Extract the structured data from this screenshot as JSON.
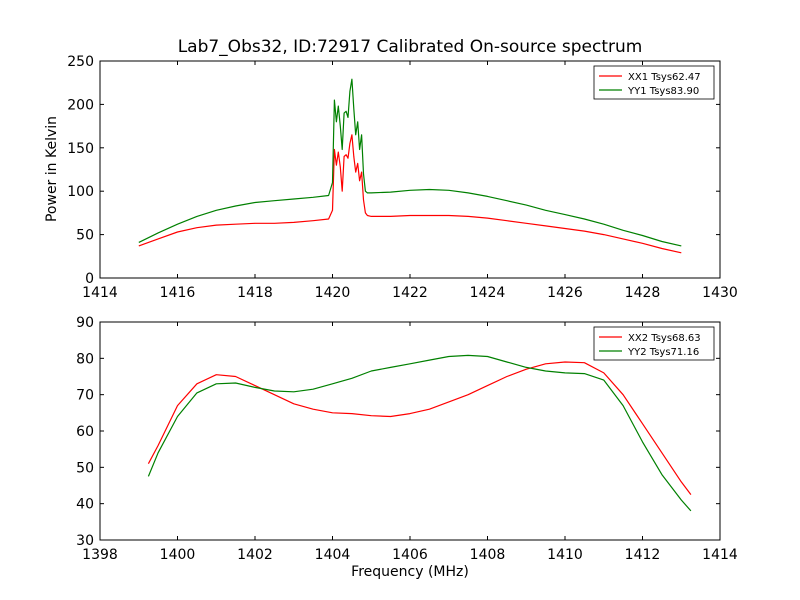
{
  "figure": {
    "title": "Lab7_Obs32, ID:72917 Calibrated On-source spectrum",
    "xlabel": "Frequency (MHz)",
    "ylabel": "Power in Kelvin"
  },
  "colors": {
    "red": "#ff0000",
    "green": "#008000"
  },
  "chart_data": [
    {
      "type": "line",
      "xlim": [
        1414,
        1430
      ],
      "ylim": [
        0,
        250
      ],
      "xticks": [
        1414,
        1416,
        1418,
        1420,
        1422,
        1424,
        1426,
        1428,
        1430
      ],
      "yticks": [
        0,
        50,
        100,
        150,
        200,
        250
      ],
      "legend_position": "top-right",
      "series": [
        {
          "name": "XX1 Tsys62.47",
          "color": "#ff0000",
          "x": [
            1415.0,
            1415.5,
            1416.0,
            1416.5,
            1417.0,
            1417.5,
            1418.0,
            1418.5,
            1419.0,
            1419.5,
            1419.9,
            1420.0,
            1420.05,
            1420.1,
            1420.15,
            1420.2,
            1420.25,
            1420.3,
            1420.35,
            1420.4,
            1420.45,
            1420.5,
            1420.55,
            1420.6,
            1420.65,
            1420.7,
            1420.75,
            1420.8,
            1420.85,
            1420.9,
            1421.0,
            1421.5,
            1422.0,
            1422.5,
            1423.0,
            1423.5,
            1424.0,
            1424.5,
            1425.0,
            1425.5,
            1426.0,
            1426.5,
            1427.0,
            1427.5,
            1428.0,
            1428.5,
            1429.0
          ],
          "values": [
            37,
            45,
            53,
            58,
            61,
            62,
            63,
            63,
            64,
            66,
            68,
            78,
            148,
            130,
            145,
            128,
            100,
            140,
            142,
            138,
            155,
            165,
            140,
            122,
            132,
            112,
            122,
            90,
            75,
            72,
            71,
            71,
            72,
            72,
            72,
            71,
            69,
            66,
            63,
            60,
            57,
            54,
            50,
            45,
            40,
            34,
            29
          ]
        },
        {
          "name": "YY1 Tsys83.90",
          "color": "#008000",
          "x": [
            1415.0,
            1415.5,
            1416.0,
            1416.5,
            1417.0,
            1417.5,
            1418.0,
            1418.5,
            1419.0,
            1419.5,
            1419.9,
            1420.0,
            1420.05,
            1420.1,
            1420.15,
            1420.2,
            1420.25,
            1420.3,
            1420.35,
            1420.4,
            1420.45,
            1420.5,
            1420.55,
            1420.6,
            1420.65,
            1420.7,
            1420.75,
            1420.8,
            1420.85,
            1420.9,
            1421.0,
            1421.5,
            1422.0,
            1422.5,
            1423.0,
            1423.5,
            1424.0,
            1424.5,
            1425.0,
            1425.5,
            1426.0,
            1426.5,
            1427.0,
            1427.5,
            1428.0,
            1428.5,
            1429.0
          ],
          "values": [
            41,
            52,
            62,
            71,
            78,
            83,
            87,
            89,
            91,
            93,
            95,
            110,
            205,
            180,
            198,
            175,
            148,
            190,
            192,
            185,
            215,
            229,
            195,
            165,
            180,
            148,
            165,
            120,
            100,
            98,
            98,
            99,
            101,
            102,
            101,
            98,
            94,
            89,
            84,
            78,
            73,
            68,
            62,
            55,
            49,
            42,
            37
          ]
        }
      ]
    },
    {
      "type": "line",
      "xlim": [
        1398,
        1414
      ],
      "ylim": [
        30,
        90
      ],
      "xticks": [
        1398,
        1400,
        1402,
        1404,
        1406,
        1408,
        1410,
        1412,
        1414
      ],
      "yticks": [
        30,
        40,
        50,
        60,
        70,
        80,
        90
      ],
      "legend_position": "top-right",
      "series": [
        {
          "name": "XX2 Tsys68.63",
          "color": "#ff0000",
          "x": [
            1399.25,
            1399.5,
            1400.0,
            1400.5,
            1401.0,
            1401.5,
            1402.0,
            1402.5,
            1403.0,
            1403.5,
            1404.0,
            1404.5,
            1405.0,
            1405.5,
            1406.0,
            1406.5,
            1407.0,
            1407.5,
            1408.0,
            1408.5,
            1409.0,
            1409.5,
            1410.0,
            1410.5,
            1411.0,
            1411.5,
            1412.0,
            1412.5,
            1413.0,
            1413.25
          ],
          "values": [
            51,
            56,
            67,
            73,
            75.5,
            75,
            72.5,
            70,
            67.5,
            66,
            65,
            64.8,
            64.2,
            64,
            64.8,
            66,
            68,
            70,
            72.5,
            75,
            77,
            78.5,
            79,
            78.8,
            76,
            70,
            62,
            54,
            46,
            42.5
          ]
        },
        {
          "name": "YY2 Tsys71.16",
          "color": "#008000",
          "x": [
            1399.25,
            1399.5,
            1400.0,
            1400.5,
            1401.0,
            1401.5,
            1402.0,
            1402.5,
            1403.0,
            1403.5,
            1404.0,
            1404.5,
            1405.0,
            1405.5,
            1406.0,
            1406.5,
            1407.0,
            1407.5,
            1408.0,
            1408.5,
            1409.0,
            1409.5,
            1410.0,
            1410.5,
            1411.0,
            1411.5,
            1412.0,
            1412.5,
            1413.0,
            1413.25
          ],
          "values": [
            47.5,
            54,
            64,
            70.5,
            73,
            73.2,
            72,
            71,
            70.8,
            71.5,
            73,
            74.5,
            76.5,
            77.5,
            78.5,
            79.5,
            80.5,
            80.8,
            80.5,
            79,
            77.5,
            76.5,
            76,
            75.8,
            74,
            67,
            57,
            48,
            41,
            38
          ]
        }
      ]
    }
  ]
}
